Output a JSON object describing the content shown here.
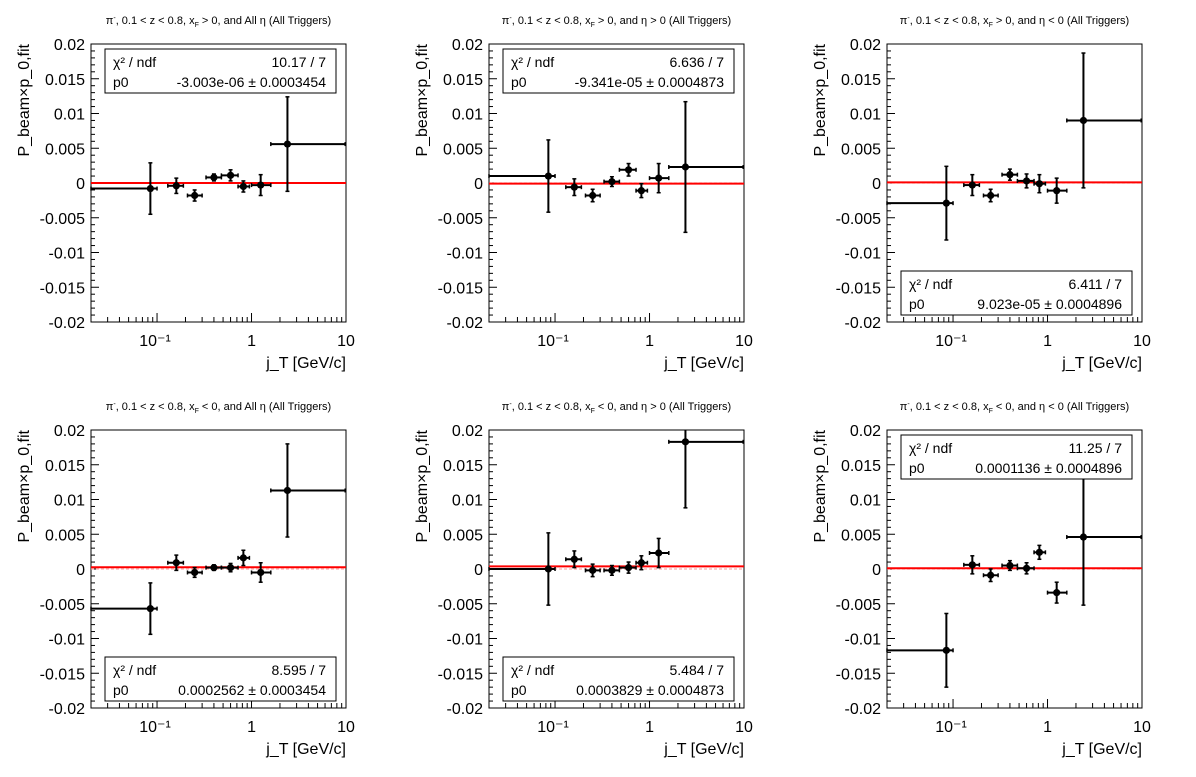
{
  "colors": {
    "fit_line": "#ff0000",
    "reference_line": "#ff9999",
    "points": "#000000"
  },
  "chart_data": [
    {
      "type": "scatter",
      "title": "π⁻, 0.1 < z < 0.8, x_F > 0, and All η (All Triggers)",
      "title_parts": {
        "particle": "π",
        "sup": "-",
        "cuts": ", 0.1 < z < 0.8, x",
        "sub": "F",
        "rest": " > 0, and All η (All Triggers)"
      },
      "xlabel": "j_T [GeV/c]",
      "ylabel": "P_beam×p_0,fit",
      "xscale": "log",
      "xlim": [
        0.02,
        10
      ],
      "ylim": [
        -0.02,
        0.02
      ],
      "x_tick_labels": [
        "10⁻¹",
        "1",
        "10"
      ],
      "y_tick_labels": [
        "-0.02",
        "-0.015",
        "-0.01",
        "-0.005",
        "0",
        "0.005",
        "0.01",
        "0.015",
        "0.02"
      ],
      "stats": {
        "chi2_label": "χ² / ndf",
        "chi2_value": "10.17 / 7",
        "p0_label": "p0",
        "p0_value": "-3.003e-06 ± 0.0003454",
        "position": "top"
      },
      "fit": {
        "p0": -3.003e-06
      },
      "points": [
        {
          "x": 0.085,
          "xlo": 0.02,
          "xhi": 0.1,
          "y": -0.0008,
          "yerr": 0.0037
        },
        {
          "x": 0.16,
          "xlo": 0.13,
          "xhi": 0.19,
          "y": -0.0004,
          "yerr": 0.0011
        },
        {
          "x": 0.25,
          "xlo": 0.21,
          "xhi": 0.3,
          "y": -0.0018,
          "yerr": 0.0008
        },
        {
          "x": 0.4,
          "xlo": 0.33,
          "xhi": 0.48,
          "y": 0.0008,
          "yerr": 0.0005
        },
        {
          "x": 0.6,
          "xlo": 0.48,
          "xhi": 0.72,
          "y": 0.0011,
          "yerr": 0.0008
        },
        {
          "x": 0.82,
          "xlo": 0.72,
          "xhi": 0.95,
          "y": -0.0005,
          "yerr": 0.0008
        },
        {
          "x": 1.25,
          "xlo": 1.0,
          "xhi": 1.6,
          "y": -0.0003,
          "yerr": 0.0015
        },
        {
          "x": 2.4,
          "xlo": 1.6,
          "xhi": 9.8,
          "y": 0.0056,
          "yerr": 0.0068
        }
      ]
    },
    {
      "type": "scatter",
      "title": "π⁻, 0.1 < z < 0.8, x_F > 0, and η > 0 (All Triggers)",
      "title_parts": {
        "particle": "π",
        "sup": "-",
        "cuts": ", 0.1 < z < 0.8, x",
        "sub": "F",
        "rest": " > 0, and η > 0 (All Triggers)"
      },
      "xlabel": "j_T [GeV/c]",
      "ylabel": "P_beam×p_0,fit",
      "xscale": "log",
      "xlim": [
        0.02,
        10
      ],
      "ylim": [
        -0.02,
        0.02
      ],
      "x_tick_labels": [
        "10⁻¹",
        "1",
        "10"
      ],
      "y_tick_labels": [
        "-0.02",
        "-0.015",
        "-0.01",
        "-0.005",
        "0",
        "0.005",
        "0.01",
        "0.015",
        "0.02"
      ],
      "stats": {
        "chi2_label": "χ² / ndf",
        "chi2_value": "6.636 / 7",
        "p0_label": "p0",
        "p0_value": "-9.341e-05 ± 0.0004873",
        "position": "top"
      },
      "fit": {
        "p0": -9.341e-05
      },
      "points": [
        {
          "x": 0.085,
          "xlo": 0.02,
          "xhi": 0.1,
          "y": 0.001,
          "yerr": 0.0052
        },
        {
          "x": 0.16,
          "xlo": 0.13,
          "xhi": 0.19,
          "y": -0.0006,
          "yerr": 0.0012
        },
        {
          "x": 0.25,
          "xlo": 0.21,
          "xhi": 0.3,
          "y": -0.0018,
          "yerr": 0.0009
        },
        {
          "x": 0.4,
          "xlo": 0.33,
          "xhi": 0.48,
          "y": 0.0002,
          "yerr": 0.0007
        },
        {
          "x": 0.6,
          "xlo": 0.48,
          "xhi": 0.72,
          "y": 0.0019,
          "yerr": 0.0009
        },
        {
          "x": 0.82,
          "xlo": 0.72,
          "xhi": 0.95,
          "y": -0.0011,
          "yerr": 0.001
        },
        {
          "x": 1.25,
          "xlo": 1.0,
          "xhi": 1.6,
          "y": 0.0007,
          "yerr": 0.0021
        },
        {
          "x": 2.4,
          "xlo": 1.6,
          "xhi": 9.8,
          "y": 0.0023,
          "yerr": 0.0094
        }
      ]
    },
    {
      "type": "scatter",
      "title": "π⁻, 0.1 < z < 0.8, x_F > 0, and η < 0 (All Triggers)",
      "title_parts": {
        "particle": "π",
        "sup": "-",
        "cuts": ", 0.1 < z < 0.8, x",
        "sub": "F",
        "rest": " > 0, and η < 0 (All Triggers)"
      },
      "xlabel": "j_T [GeV/c]",
      "ylabel": "P_beam×p_0,fit",
      "xscale": "log",
      "xlim": [
        0.02,
        10
      ],
      "ylim": [
        -0.02,
        0.02
      ],
      "x_tick_labels": [
        "10⁻¹",
        "1",
        "10"
      ],
      "y_tick_labels": [
        "-0.02",
        "-0.015",
        "-0.01",
        "-0.005",
        "0",
        "0.005",
        "0.01",
        "0.015",
        "0.02"
      ],
      "stats": {
        "chi2_label": "χ² / ndf",
        "chi2_value": "6.411 / 7",
        "p0_label": "p0",
        "p0_value": "9.023e-05 ± 0.0004896",
        "position": "bottom"
      },
      "fit": {
        "p0": 9.023e-05
      },
      "points": [
        {
          "x": 0.085,
          "xlo": 0.02,
          "xhi": 0.1,
          "y": -0.0029,
          "yerr": 0.0053
        },
        {
          "x": 0.16,
          "xlo": 0.13,
          "xhi": 0.19,
          "y": -0.0003,
          "yerr": 0.0015
        },
        {
          "x": 0.25,
          "xlo": 0.21,
          "xhi": 0.3,
          "y": -0.0018,
          "yerr": 0.0009
        },
        {
          "x": 0.4,
          "xlo": 0.33,
          "xhi": 0.48,
          "y": 0.0012,
          "yerr": 0.0008
        },
        {
          "x": 0.6,
          "xlo": 0.48,
          "xhi": 0.72,
          "y": 0.0003,
          "yerr": 0.001
        },
        {
          "x": 0.82,
          "xlo": 0.72,
          "xhi": 0.95,
          "y": -0.0001,
          "yerr": 0.0013
        },
        {
          "x": 1.25,
          "xlo": 1.0,
          "xhi": 1.6,
          "y": -0.0011,
          "yerr": 0.0018
        },
        {
          "x": 2.4,
          "xlo": 1.6,
          "xhi": 9.8,
          "y": 0.009,
          "yerr": 0.0097
        }
      ]
    },
    {
      "type": "scatter",
      "title": "π⁻, 0.1 < z < 0.8, x_F < 0, and All η (All Triggers)",
      "title_parts": {
        "particle": "π",
        "sup": "-",
        "cuts": ", 0.1 < z < 0.8, x",
        "sub": "F",
        "rest": " < 0, and All η (All Triggers)"
      },
      "xlabel": "j_T [GeV/c]",
      "ylabel": "P_beam×p_0,fit",
      "xscale": "log",
      "xlim": [
        0.02,
        10
      ],
      "ylim": [
        -0.02,
        0.02
      ],
      "x_tick_labels": [
        "10⁻¹",
        "1",
        "10"
      ],
      "y_tick_labels": [
        "-0.02",
        "-0.015",
        "-0.01",
        "-0.005",
        "0",
        "0.005",
        "0.01",
        "0.015",
        "0.02"
      ],
      "stats": {
        "chi2_label": "χ² / ndf",
        "chi2_value": "8.595 / 7",
        "p0_label": "p0",
        "p0_value": "0.0002562 ± 0.0003454",
        "position": "bottom"
      },
      "fit": {
        "p0": 0.0002562
      },
      "points": [
        {
          "x": 0.085,
          "xlo": 0.02,
          "xhi": 0.1,
          "y": -0.0057,
          "yerr": 0.0037
        },
        {
          "x": 0.16,
          "xlo": 0.13,
          "xhi": 0.19,
          "y": 0.0009,
          "yerr": 0.0011
        },
        {
          "x": 0.25,
          "xlo": 0.21,
          "xhi": 0.3,
          "y": -0.0005,
          "yerr": 0.0007
        },
        {
          "x": 0.4,
          "xlo": 0.33,
          "xhi": 0.48,
          "y": 0.0002,
          "yerr": 0.0004
        },
        {
          "x": 0.6,
          "xlo": 0.48,
          "xhi": 0.72,
          "y": 0.0002,
          "yerr": 0.0006
        },
        {
          "x": 0.82,
          "xlo": 0.72,
          "xhi": 0.95,
          "y": 0.0016,
          "yerr": 0.0011
        },
        {
          "x": 1.25,
          "xlo": 1.0,
          "xhi": 1.6,
          "y": -0.0005,
          "yerr": 0.0014
        },
        {
          "x": 2.4,
          "xlo": 1.6,
          "xhi": 9.8,
          "y": 0.0113,
          "yerr": 0.0067
        }
      ]
    },
    {
      "type": "scatter",
      "title": "π⁻, 0.1 < z < 0.8, x_F < 0, and η > 0 (All Triggers)",
      "title_parts": {
        "particle": "π",
        "sup": "-",
        "cuts": ", 0.1 < z < 0.8, x",
        "sub": "F",
        "rest": " < 0, and η > 0 (All Triggers)"
      },
      "xlabel": "j_T [GeV/c]",
      "ylabel": "P_beam×p_0,fit",
      "xscale": "log",
      "xlim": [
        0.02,
        10
      ],
      "ylim": [
        -0.02,
        0.02
      ],
      "x_tick_labels": [
        "10⁻¹",
        "1",
        "10"
      ],
      "y_tick_labels": [
        "-0.02",
        "-0.015",
        "-0.01",
        "-0.005",
        "0",
        "0.005",
        "0.01",
        "0.015",
        "0.02"
      ],
      "stats": {
        "chi2_label": "χ² / ndf",
        "chi2_value": "5.484 / 7",
        "p0_label": "p0",
        "p0_value": "0.0003829 ± 0.0004873",
        "position": "bottom"
      },
      "fit": {
        "p0": 0.0003829
      },
      "points": [
        {
          "x": 0.085,
          "xlo": 0.02,
          "xhi": 0.1,
          "y": 0.0,
          "yerr": 0.0052
        },
        {
          "x": 0.16,
          "xlo": 0.13,
          "xhi": 0.19,
          "y": 0.0014,
          "yerr": 0.0012
        },
        {
          "x": 0.25,
          "xlo": 0.21,
          "xhi": 0.3,
          "y": -0.0002,
          "yerr": 0.0009
        },
        {
          "x": 0.4,
          "xlo": 0.33,
          "xhi": 0.48,
          "y": -0.0002,
          "yerr": 0.0007
        },
        {
          "x": 0.6,
          "xlo": 0.48,
          "xhi": 0.72,
          "y": 0.0002,
          "yerr": 0.0008
        },
        {
          "x": 0.82,
          "xlo": 0.72,
          "xhi": 0.95,
          "y": 0.0009,
          "yerr": 0.001
        },
        {
          "x": 1.25,
          "xlo": 1.0,
          "xhi": 1.6,
          "y": 0.0023,
          "yerr": 0.0021
        },
        {
          "x": 2.4,
          "xlo": 1.6,
          "xhi": 9.8,
          "y": 0.0183,
          "yerr": 0.0095
        }
      ]
    },
    {
      "type": "scatter",
      "title": "π⁻, 0.1 < z < 0.8, x_F < 0, and η < 0 (All Triggers)",
      "title_parts": {
        "particle": "π",
        "sup": "-",
        "cuts": ", 0.1 < z < 0.8, x",
        "sub": "F",
        "rest": " < 0, and η < 0 (All Triggers)"
      },
      "xlabel": "j_T [GeV/c]",
      "ylabel": "P_beam×p_0,fit",
      "xscale": "log",
      "xlim": [
        0.02,
        10
      ],
      "ylim": [
        -0.02,
        0.02
      ],
      "x_tick_labels": [
        "10⁻¹",
        "1",
        "10"
      ],
      "y_tick_labels": [
        "-0.02",
        "-0.015",
        "-0.01",
        "-0.005",
        "0",
        "0.005",
        "0.01",
        "0.015",
        "0.02"
      ],
      "stats": {
        "chi2_label": "χ² / ndf",
        "chi2_value": "11.25 / 7",
        "p0_label": "p0",
        "p0_value": "0.0001136 ± 0.0004896",
        "position": "top"
      },
      "fit": {
        "p0": 0.0001136
      },
      "points": [
        {
          "x": 0.085,
          "xlo": 0.02,
          "xhi": 0.1,
          "y": -0.0117,
          "yerr": 0.0053
        },
        {
          "x": 0.16,
          "xlo": 0.13,
          "xhi": 0.19,
          "y": 0.0006,
          "yerr": 0.0013
        },
        {
          "x": 0.25,
          "xlo": 0.21,
          "xhi": 0.3,
          "y": -0.0009,
          "yerr": 0.0009
        },
        {
          "x": 0.4,
          "xlo": 0.33,
          "xhi": 0.48,
          "y": 0.0005,
          "yerr": 0.0007
        },
        {
          "x": 0.6,
          "xlo": 0.48,
          "xhi": 0.72,
          "y": 0.0001,
          "yerr": 0.0008
        },
        {
          "x": 0.82,
          "xlo": 0.72,
          "xhi": 0.95,
          "y": 0.0024,
          "yerr": 0.001
        },
        {
          "x": 1.25,
          "xlo": 1.0,
          "xhi": 1.6,
          "y": -0.0034,
          "yerr": 0.0015
        },
        {
          "x": 2.4,
          "xlo": 1.6,
          "xhi": 9.8,
          "y": 0.0046,
          "yerr": 0.0098
        }
      ]
    }
  ]
}
